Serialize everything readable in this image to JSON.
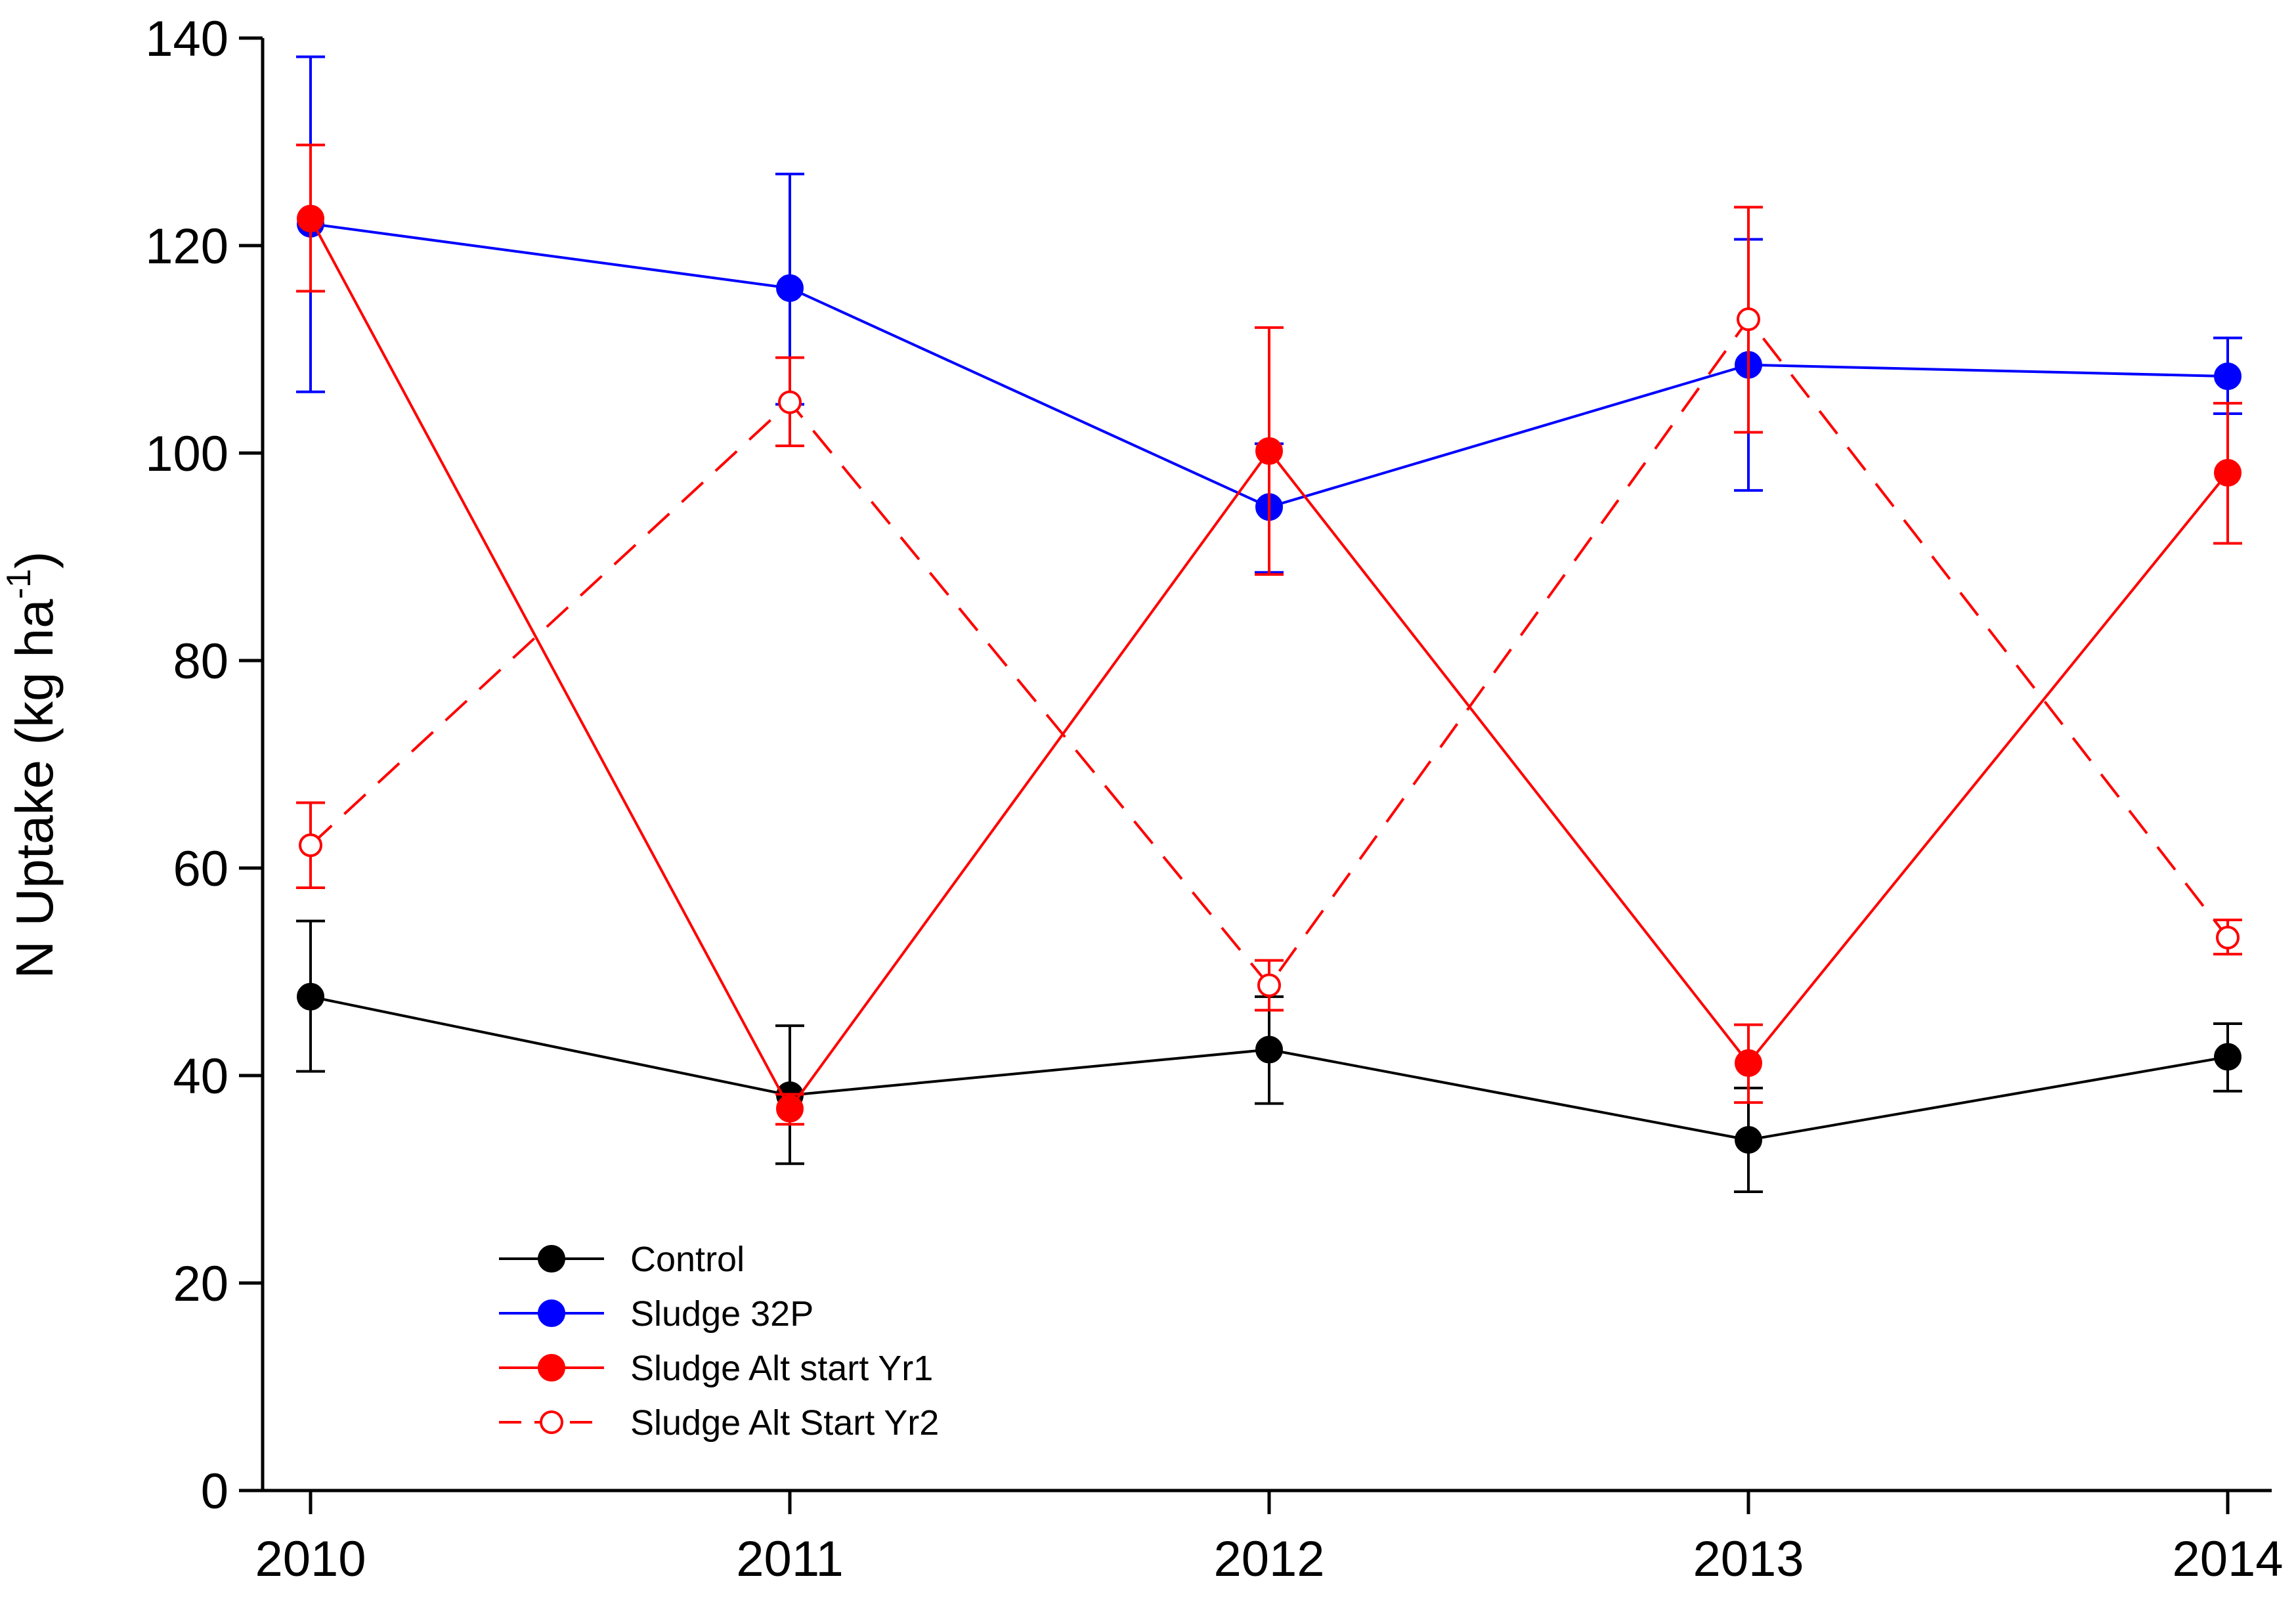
{
  "chart_data": {
    "type": "line",
    "title": "",
    "xlabel": "",
    "ylabel": {
      "main": "N Uptake (kg ha",
      "superscript": "-1",
      "close": ")"
    },
    "categories": [
      "2010",
      "2011",
      "2012",
      "2013",
      "2014"
    ],
    "ylim": [
      0,
      140
    ],
    "yticks": [
      0,
      20,
      40,
      60,
      80,
      100,
      120,
      140
    ],
    "ytick_labels": [
      "0",
      "20",
      "40",
      "60",
      "80",
      "100",
      "120",
      "140"
    ],
    "grid": false,
    "legend_position": "bottom-left",
    "series": [
      {
        "name": "Control",
        "color": "#000000",
        "line_style": "solid",
        "marker": "filled-circle",
        "values": [
          47.6,
          38.1,
          42.5,
          33.8,
          41.8
        ],
        "err_low": [
          40.4,
          31.5,
          37.3,
          28.8,
          38.5
        ],
        "err_high": [
          54.9,
          44.8,
          47.6,
          38.8,
          45.0
        ]
      },
      {
        "name": "Sludge 32P",
        "color": "#0000ff",
        "line_style": "solid",
        "marker": "filled-circle",
        "values": [
          122.1,
          115.9,
          94.8,
          108.5,
          107.4
        ],
        "err_low": [
          105.9,
          104.7,
          88.5,
          96.4,
          103.8
        ],
        "err_high": [
          138.2,
          126.9,
          100.9,
          120.6,
          111.1
        ]
      },
      {
        "name": "Sludge Alt start Yr1",
        "color": "#ff0000",
        "line_style": "solid",
        "marker": "filled-circle",
        "values": [
          122.6,
          36.8,
          100.2,
          41.2,
          98.1
        ],
        "err_low": [
          115.6,
          35.3,
          88.3,
          37.4,
          91.3
        ],
        "err_high": [
          129.7,
          38.2,
          112.1,
          44.9,
          104.8
        ]
      },
      {
        "name": "Sludge Alt Start Yr2",
        "color": "#ff0000",
        "line_style": "dashed",
        "marker": "open-circle",
        "values": [
          62.2,
          104.9,
          48.7,
          112.9,
          53.3
        ],
        "err_low": [
          58.1,
          100.7,
          46.3,
          102.0,
          51.7
        ],
        "err_high": [
          66.3,
          109.2,
          51.1,
          123.7,
          55.0
        ]
      }
    ]
  }
}
